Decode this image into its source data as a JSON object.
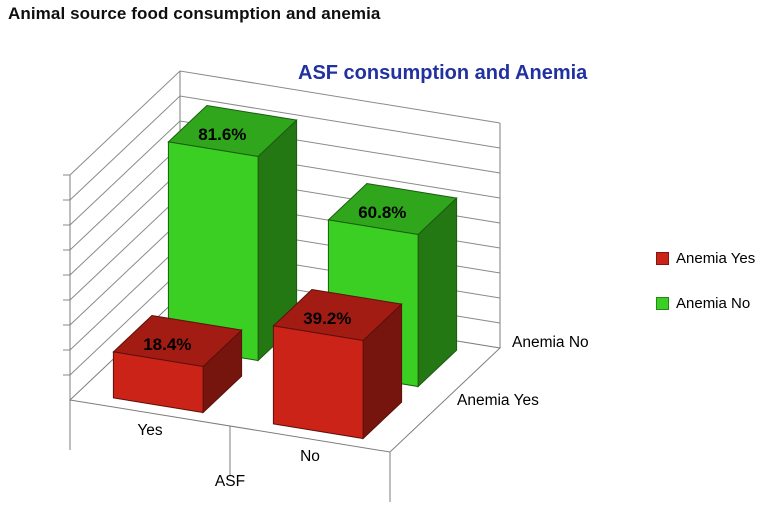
{
  "page": {
    "heading": "Animal source food consumption and anemia"
  },
  "chart_data": {
    "type": "bar",
    "subtype": "3d-clustered-column",
    "title": "ASF consumption and Anemia",
    "title_color": "#2231A0",
    "categories": [
      "Yes",
      "No"
    ],
    "series": [
      {
        "name": "Anemia Yes",
        "color": "#CC2318",
        "values": [
          18.4,
          39.2
        ],
        "data_labels": [
          "18.4%",
          "39.2%"
        ]
      },
      {
        "name": "Anemia No",
        "color": "#3CCF23",
        "values": [
          81.6,
          60.8
        ],
        "data_labels": [
          "81.6%",
          "60.8%"
        ]
      }
    ],
    "xlabel": "ASF",
    "ylabel": "",
    "ylim": [
      0,
      90
    ],
    "gridline_step": 10,
    "grid": true,
    "legend_position": "right",
    "depth_axis_labels": [
      "Anemia Yes",
      "Anemia No"
    ],
    "axis_text_color": "#000000",
    "gridline_color": "#8a8a8a"
  }
}
